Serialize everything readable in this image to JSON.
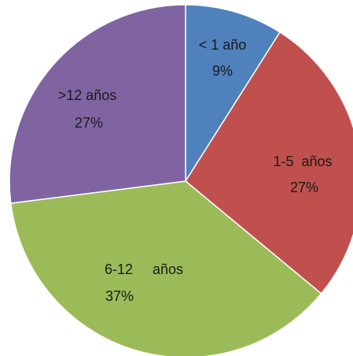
{
  "chart_data": {
    "type": "pie",
    "categories": [
      "< 1 año",
      "1-5  años",
      "6-12     años",
      ">12 años"
    ],
    "values": [
      9,
      27,
      37,
      27
    ],
    "value_labels": [
      "9%",
      "27%",
      "37%",
      "27%"
    ],
    "colors": [
      "#4f81bd",
      "#c0504d",
      "#9bbb59",
      "#8064a2"
    ]
  }
}
